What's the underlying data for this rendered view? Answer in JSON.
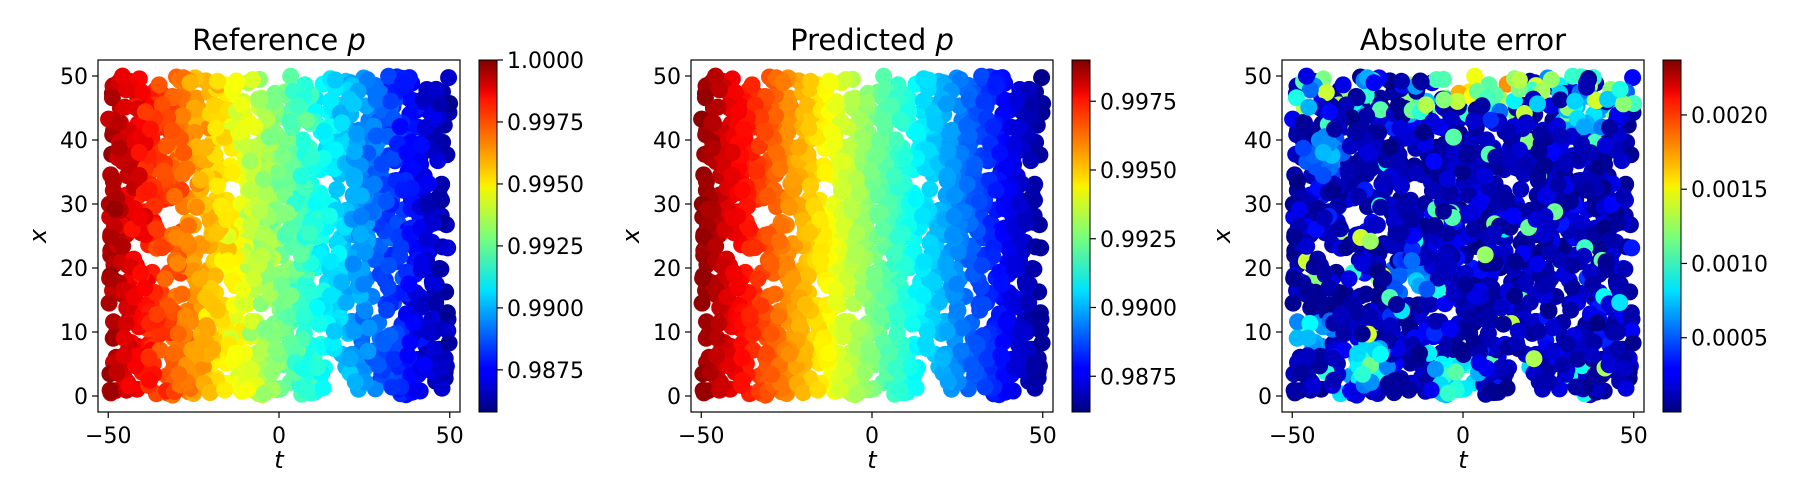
{
  "colormap": "jet",
  "chart_data": [
    {
      "type": "scatter",
      "title": "Reference p",
      "title_plain": "Reference ",
      "title_italic": "p",
      "xlabel": "t",
      "ylabel": "x",
      "xlim": [
        -53,
        53
      ],
      "ylim": [
        -2.5,
        52.5
      ],
      "xticks": [
        "−50",
        "0",
        "50"
      ],
      "xtick_values": [
        -50,
        0,
        50
      ],
      "yticks": [
        "0",
        "10",
        "20",
        "30",
        "40",
        "50"
      ],
      "ytick_values": [
        0,
        10,
        20,
        30,
        40,
        50
      ],
      "field": "reference",
      "colorbar": {
        "min": 0.9858,
        "max": 1.0,
        "ticks": [
          "1.0000",
          "0.9975",
          "0.9950",
          "0.9925",
          "0.9900",
          "0.9875"
        ],
        "tick_values": [
          1.0,
          0.9975,
          0.995,
          0.9925,
          0.99,
          0.9875
        ]
      },
      "points": {
        "t_range": [
          -50,
          50
        ],
        "x_range": [
          0,
          50
        ],
        "value_at_t_min": 0.9995,
        "value_at_t_max": 0.9862,
        "description_of_values": "p decreases roughly linearly with t, with small scatter"
      }
    },
    {
      "type": "scatter",
      "title": "Predicted p",
      "title_plain": "Predicted ",
      "title_italic": "p",
      "xlabel": "t",
      "ylabel": "x",
      "xlim": [
        -53,
        53
      ],
      "ylim": [
        -2.5,
        52.5
      ],
      "xticks": [
        "−50",
        "0",
        "50"
      ],
      "xtick_values": [
        -50,
        0,
        50
      ],
      "yticks": [
        "0",
        "10",
        "20",
        "30",
        "40",
        "50"
      ],
      "ytick_values": [
        0,
        10,
        20,
        30,
        40,
        50
      ],
      "field": "predicted",
      "colorbar": {
        "min": 0.9862,
        "max": 0.999,
        "ticks": [
          "0.9975",
          "0.9950",
          "0.9925",
          "0.9900",
          "0.9875"
        ],
        "tick_values": [
          0.9975,
          0.995,
          0.9925,
          0.99,
          0.9875
        ]
      },
      "points": {
        "t_range": [
          -50,
          50
        ],
        "x_range": [
          0,
          50
        ],
        "value_at_t_min": 0.9988,
        "value_at_t_max": 0.9864
      }
    },
    {
      "type": "scatter",
      "title": "Absolute error",
      "title_plain": "Absolute error",
      "title_italic": "",
      "xlabel": "t",
      "ylabel": "x",
      "xlim": [
        -53,
        53
      ],
      "ylim": [
        -2.5,
        52.5
      ],
      "xticks": [
        "−50",
        "0",
        "50"
      ],
      "xtick_values": [
        -50,
        0,
        50
      ],
      "yticks": [
        "0",
        "10",
        "20",
        "30",
        "40",
        "50"
      ],
      "ytick_values": [
        0,
        10,
        20,
        30,
        40,
        50
      ],
      "field": "error",
      "colorbar": {
        "min": 0.0,
        "max": 0.00237,
        "ticks": [
          "0.0020",
          "0.0015",
          "0.0010",
          "0.0005"
        ],
        "tick_values": [
          0.002,
          0.0015,
          0.001,
          0.0005
        ]
      },
      "points": {
        "t_range": [
          -50,
          50
        ],
        "x_range": [
          0,
          50
        ],
        "typical_error": 0.0002,
        "max_error": 0.0023,
        "hotspots": [
          {
            "t": 0,
            "x": 49,
            "value": 0.0022
          },
          {
            "t": 12,
            "x": 49,
            "value": 0.0019
          },
          {
            "t": -2,
            "x": 3,
            "value": 0.0014
          },
          {
            "t": -45,
            "x": 10,
            "value": 0.0011
          },
          {
            "t": -28,
            "x": 5,
            "value": 0.0013
          },
          {
            "t": -15,
            "x": 18,
            "value": 0.0009
          },
          {
            "t": 35,
            "x": 44,
            "value": 0.0012
          },
          {
            "t": -40,
            "x": 38,
            "value": 0.0009
          }
        ]
      }
    }
  ]
}
